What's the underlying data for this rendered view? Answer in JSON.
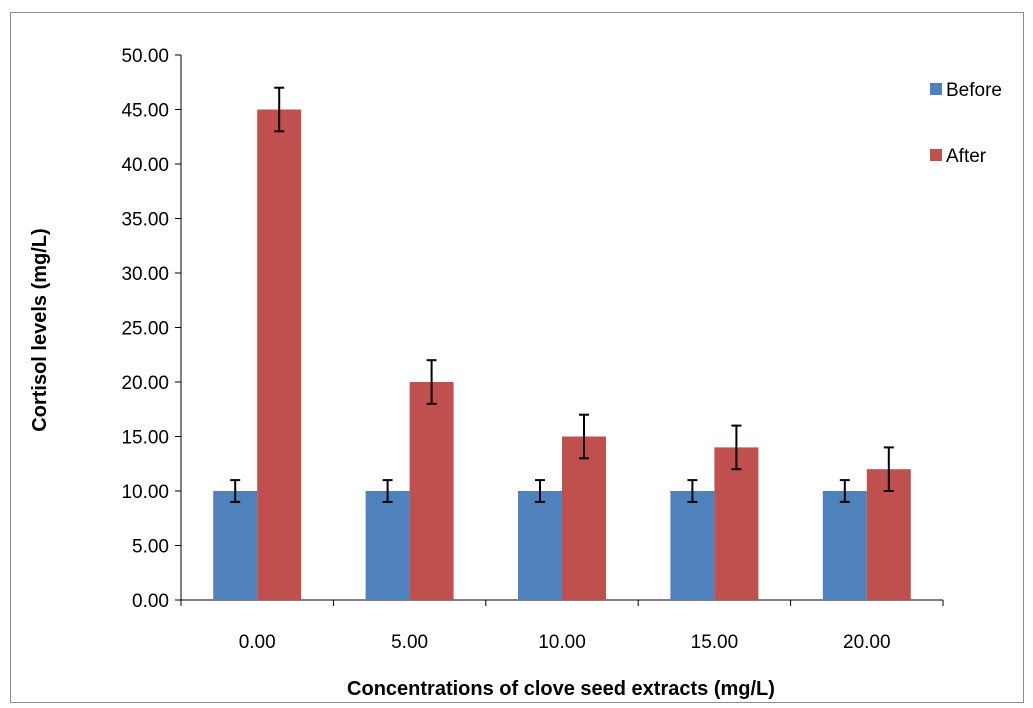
{
  "chart_data": {
    "type": "bar",
    "title": "",
    "xlabel": "Concentrations of clove seed extracts (mg/L)",
    "ylabel": "Cortisol levels (mg/L)",
    "categories": [
      "0.00",
      "5.00",
      "10.00",
      "15.00",
      "20.00"
    ],
    "ylim": [
      0,
      50
    ],
    "yticks": [
      "0.00",
      "5.00",
      "10.00",
      "15.00",
      "20.00",
      "25.00",
      "30.00",
      "35.00",
      "40.00",
      "45.00",
      "50.00"
    ],
    "grid": false,
    "legend_position": "right",
    "series": [
      {
        "name": "Before",
        "color": "#4f81bd",
        "values": [
          10,
          10,
          10,
          10,
          10
        ],
        "errors": [
          1,
          1,
          1,
          1,
          1
        ]
      },
      {
        "name": "After",
        "color": "#c0504d",
        "values": [
          45,
          20,
          15,
          14,
          12
        ],
        "errors": [
          2,
          2,
          2,
          2,
          2
        ]
      }
    ]
  }
}
